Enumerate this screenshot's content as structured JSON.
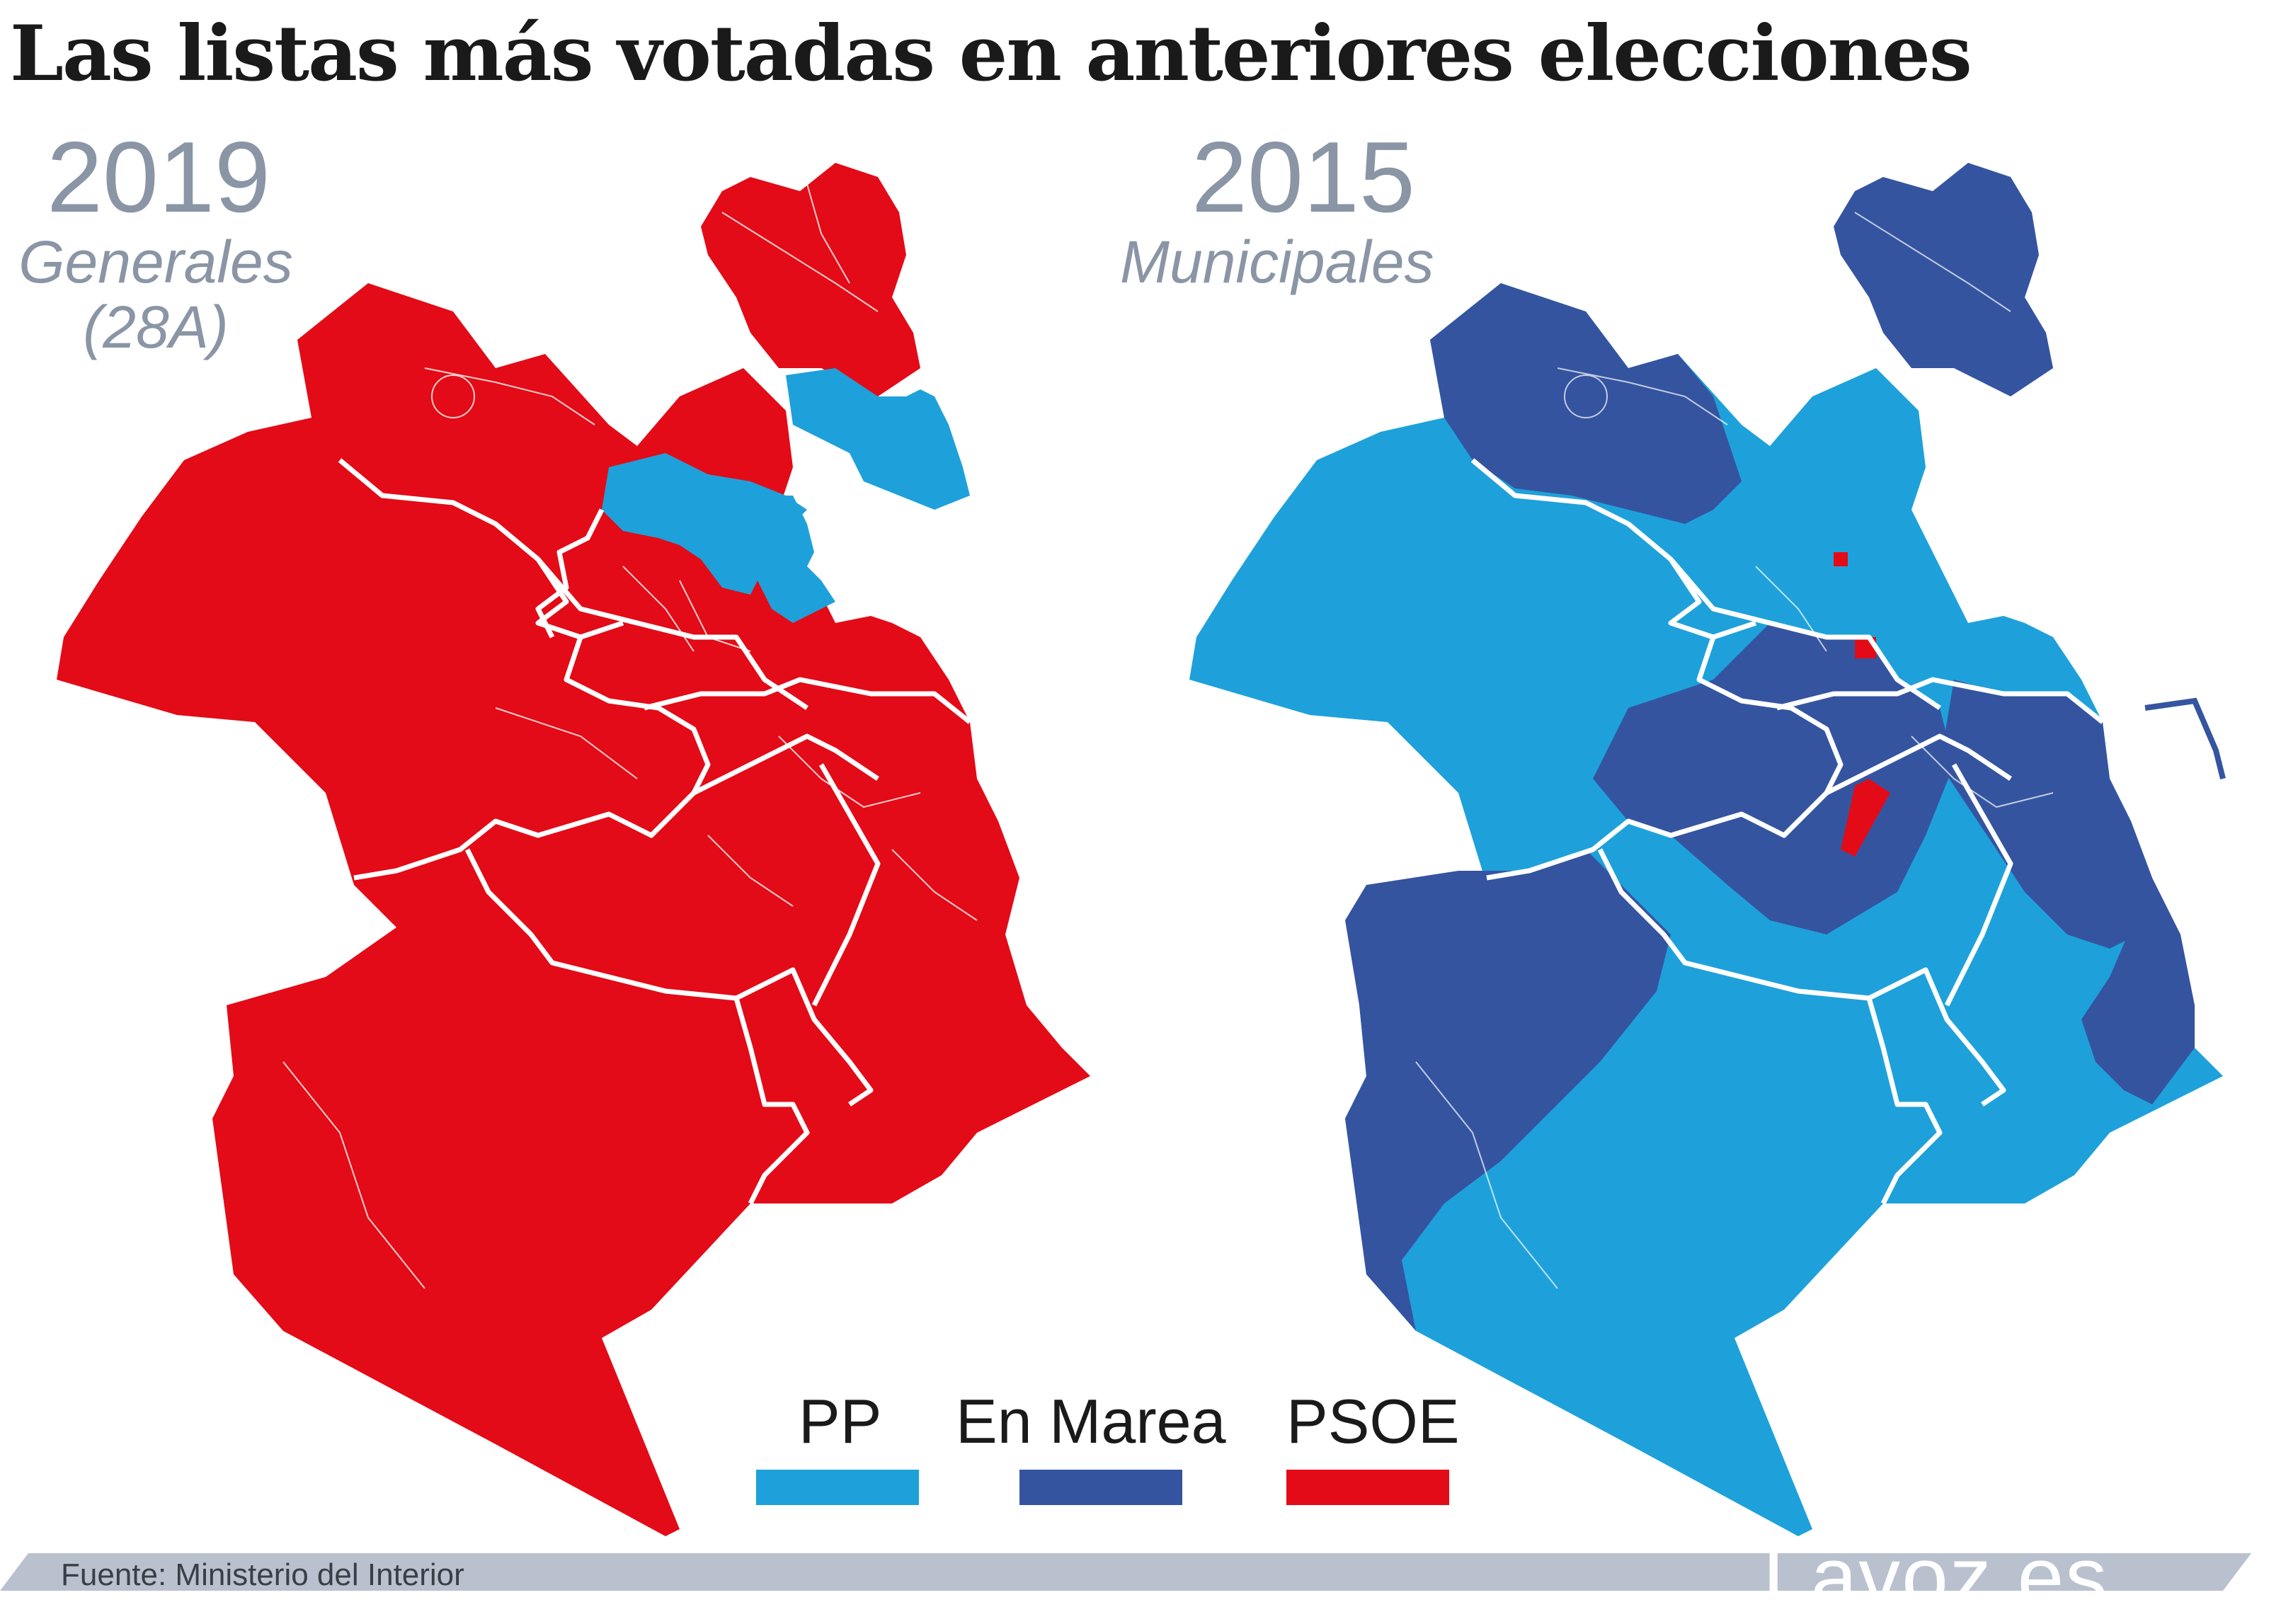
{
  "title": "Las listas más votadas en anteriores elecciones",
  "maps": [
    {
      "year": "2019",
      "subtitle_line1": "Generales",
      "subtitle_line2": "(28A)"
    },
    {
      "year": "2015",
      "subtitle_line1": "Municipales",
      "subtitle_line2": ""
    }
  ],
  "legend": [
    {
      "label": "PP",
      "color": "#1ea1da"
    },
    {
      "label": "En Marea",
      "color": "#3554a0"
    },
    {
      "label": "PSOE",
      "color": "#e30b17"
    }
  ],
  "footer": {
    "source": "Fuente: Ministerio del Interior",
    "brand": "Lavoz.es",
    "bar_color": "#b9c1cf"
  }
}
